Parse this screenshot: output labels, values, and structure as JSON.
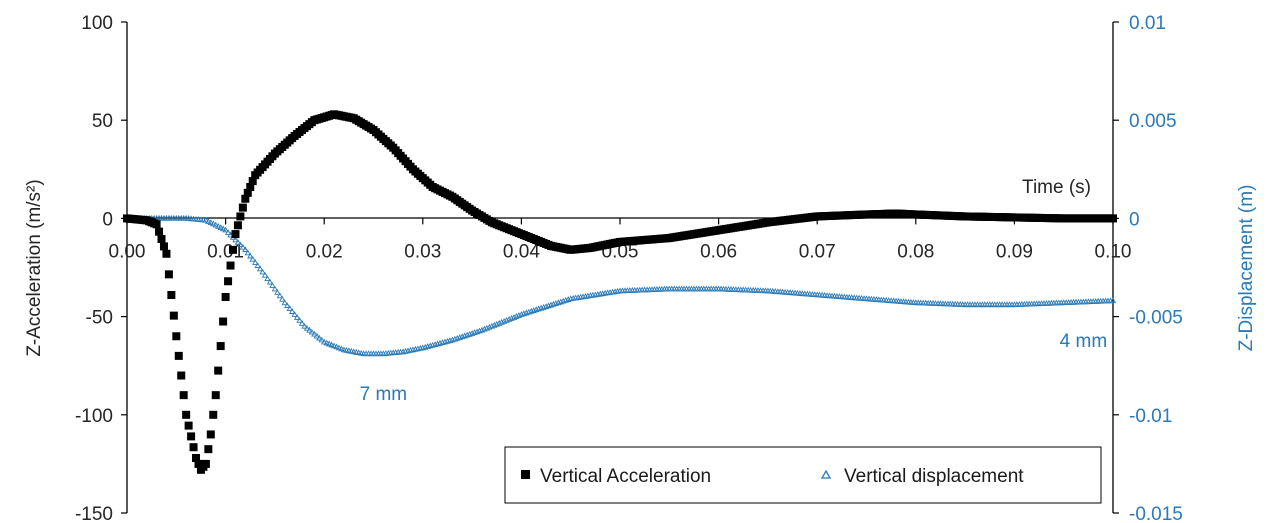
{
  "chart_data": {
    "type": "scatter",
    "x_axis": {
      "min": 0,
      "max": 0.1,
      "ticks": [
        "0.00",
        "0.01",
        "0.02",
        "0.03",
        "0.04",
        "0.05",
        "0.06",
        "0.07",
        "0.08",
        "0.09",
        "0.10"
      ],
      "label": "Time (s)"
    },
    "y_left": {
      "min": -150,
      "max": 100,
      "ticks": [
        "100",
        "50",
        "0",
        "-50",
        "-100",
        "-150"
      ],
      "label": "Z-Acceleration (m/s²)"
    },
    "y_right": {
      "min": -0.015,
      "max": 0.01,
      "ticks": [
        "0.01",
        "0.005",
        "0",
        "-0.005",
        "-0.01",
        "-0.015"
      ],
      "label": "Z-Displacement (m)"
    },
    "series": [
      {
        "name": "Vertical Acceleration",
        "axis": "left",
        "marker": "square",
        "color": "#000000",
        "x": [
          0,
          0.002,
          0.003,
          0.004,
          0.005,
          0.006,
          0.007,
          0.0075,
          0.008,
          0.0085,
          0.009,
          0.01,
          0.011,
          0.012,
          0.013,
          0.015,
          0.017,
          0.019,
          0.021,
          0.023,
          0.025,
          0.027,
          0.029,
          0.031,
          0.033,
          0.035,
          0.037,
          0.039,
          0.041,
          0.043,
          0.045,
          0.047,
          0.05,
          0.055,
          0.06,
          0.065,
          0.07,
          0.075,
          0.078,
          0.08,
          0.085,
          0.09,
          0.095,
          0.1
        ],
        "y": [
          0,
          -1,
          -3,
          -18,
          -60,
          -100,
          -122,
          -128,
          -125,
          -110,
          -90,
          -40,
          -8,
          10,
          22,
          33,
          42,
          50,
          53,
          51,
          45,
          36,
          25,
          16,
          11,
          4,
          -2,
          -6,
          -10,
          -14,
          -16,
          -15,
          -12,
          -10,
          -6,
          -2,
          1,
          2,
          2.5,
          2,
          1,
          0.5,
          0,
          0
        ]
      },
      {
        "name": "Vertical displacement",
        "axis": "right",
        "marker": "triangle",
        "color": "#2a7ab8",
        "x": [
          0,
          0.006,
          0.008,
          0.01,
          0.012,
          0.014,
          0.016,
          0.018,
          0.02,
          0.022,
          0.024,
          0.026,
          0.028,
          0.03,
          0.033,
          0.036,
          0.04,
          0.045,
          0.05,
          0.055,
          0.06,
          0.065,
          0.07,
          0.075,
          0.08,
          0.085,
          0.09,
          0.095,
          0.1
        ],
        "y": [
          0,
          0,
          -0.0001,
          -0.0006,
          -0.0016,
          -0.0029,
          -0.0043,
          -0.0055,
          -0.0063,
          -0.0067,
          -0.0069,
          -0.0069,
          -0.0068,
          -0.0066,
          -0.0062,
          -0.0057,
          -0.0049,
          -0.0041,
          -0.0037,
          -0.0036,
          -0.0036,
          -0.0037,
          -0.0039,
          -0.0041,
          -0.0043,
          -0.0044,
          -0.0044,
          -0.0043,
          -0.0042
        ]
      }
    ],
    "annotations": [
      {
        "text": "7 mm",
        "x": 0.026,
        "y_right": -0.0089
      },
      {
        "text": "4 mm",
        "x": 0.097,
        "y_right": -0.0062
      }
    ],
    "legend": {
      "position": "bottom-right"
    }
  }
}
